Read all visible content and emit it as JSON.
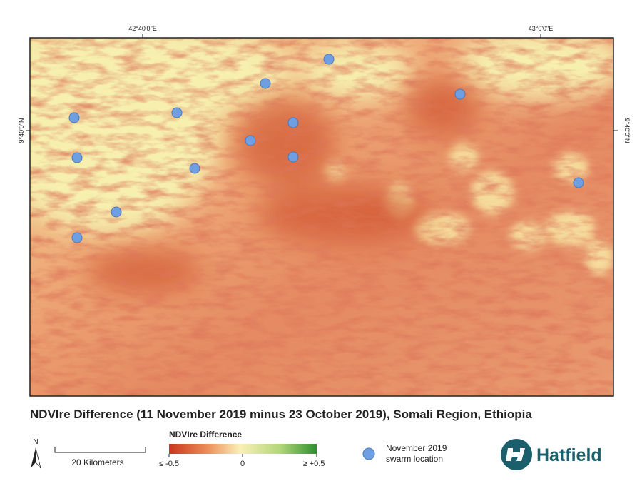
{
  "map": {
    "title": "NDVIre Difference (11 November 2019 minus 23 October 2019), Somali Region, Ethiopia",
    "graticule": {
      "top": [
        "42°40'0\"E",
        "43°0'0\"E"
      ],
      "left": "9°40'0\"N",
      "right": "9°40'0\"N"
    }
  },
  "legend": {
    "title": "NDVIre Difference",
    "labels": [
      "≤ -0.5",
      "0",
      "≥ +0.5"
    ],
    "scale_bar": "20 Kilometers",
    "north": "N",
    "point": [
      "November 2019",
      "swarm location"
    ]
  },
  "logo": "Hatfield"
}
